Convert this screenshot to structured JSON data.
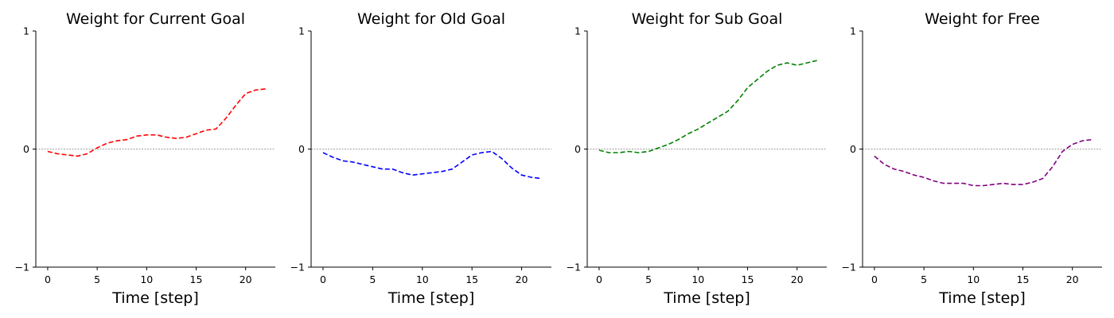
{
  "chart_data": [
    {
      "type": "line",
      "title": "Weight for Current Goal",
      "xlabel": "Time [step]",
      "ylabel": "",
      "xlim": [
        -1.2,
        23
      ],
      "ylim": [
        -1,
        1
      ],
      "xticks": [
        0,
        5,
        10,
        15,
        20
      ],
      "yticks": [
        -1,
        0,
        1
      ],
      "reference_line_y": 0,
      "series": [
        {
          "color": "#ff0000",
          "x": [
            0,
            1,
            2,
            3,
            4,
            5,
            6,
            7,
            8,
            9,
            10,
            11,
            12,
            13,
            14,
            15,
            16,
            17,
            18,
            19,
            20,
            21,
            22
          ],
          "y": [
            -0.02,
            -0.04,
            -0.05,
            -0.06,
            -0.04,
            0.01,
            0.05,
            0.07,
            0.08,
            0.11,
            0.12,
            0.12,
            0.1,
            0.09,
            0.1,
            0.13,
            0.16,
            0.17,
            0.26,
            0.37,
            0.47,
            0.5,
            0.51
          ]
        }
      ]
    },
    {
      "type": "line",
      "title": "Weight for Old Goal",
      "xlabel": "Time [step]",
      "ylabel": "",
      "xlim": [
        -1.2,
        23
      ],
      "ylim": [
        -1,
        1
      ],
      "xticks": [
        0,
        5,
        10,
        15,
        20
      ],
      "yticks": [
        -1,
        0,
        1
      ],
      "reference_line_y": 0,
      "series": [
        {
          "color": "#0000ff",
          "x": [
            0,
            1,
            2,
            3,
            4,
            5,
            6,
            7,
            8,
            9,
            10,
            11,
            12,
            13,
            14,
            15,
            16,
            17,
            18,
            19,
            20,
            21,
            22
          ],
          "y": [
            -0.03,
            -0.07,
            -0.1,
            -0.11,
            -0.13,
            -0.15,
            -0.17,
            -0.17,
            -0.2,
            -0.22,
            -0.21,
            -0.2,
            -0.19,
            -0.17,
            -0.11,
            -0.05,
            -0.03,
            -0.02,
            -0.08,
            -0.16,
            -0.22,
            -0.24,
            -0.25
          ]
        }
      ]
    },
    {
      "type": "line",
      "title": "Weight for Sub Goal",
      "xlabel": "Time [step]",
      "ylabel": "",
      "xlim": [
        -1.2,
        23
      ],
      "ylim": [
        -1,
        1
      ],
      "xticks": [
        0,
        5,
        10,
        15,
        20
      ],
      "yticks": [
        -1,
        0,
        1
      ],
      "reference_line_y": 0,
      "series": [
        {
          "color": "#008000",
          "x": [
            0,
            1,
            2,
            3,
            4,
            5,
            6,
            7,
            8,
            9,
            10,
            11,
            12,
            13,
            14,
            15,
            16,
            17,
            18,
            19,
            20,
            21,
            22
          ],
          "y": [
            -0.01,
            -0.03,
            -0.03,
            -0.02,
            -0.03,
            -0.02,
            0.01,
            0.04,
            0.08,
            0.13,
            0.17,
            0.22,
            0.27,
            0.32,
            0.41,
            0.52,
            0.59,
            0.66,
            0.71,
            0.73,
            0.71,
            0.73,
            0.75
          ]
        }
      ]
    },
    {
      "type": "line",
      "title": "Weight for Free",
      "xlabel": "Time [step]",
      "ylabel": "",
      "xlim": [
        -1.2,
        23
      ],
      "ylim": [
        -1,
        1
      ],
      "xticks": [
        0,
        5,
        10,
        15,
        20
      ],
      "yticks": [
        -1,
        0,
        1
      ],
      "reference_line_y": 0,
      "series": [
        {
          "color": "#800080",
          "x": [
            0,
            1,
            2,
            3,
            4,
            5,
            6,
            7,
            8,
            9,
            10,
            11,
            12,
            13,
            14,
            15,
            16,
            17,
            18,
            19,
            20,
            21,
            22
          ],
          "y": [
            -0.06,
            -0.13,
            -0.17,
            -0.19,
            -0.22,
            -0.24,
            -0.27,
            -0.29,
            -0.29,
            -0.29,
            -0.31,
            -0.31,
            -0.3,
            -0.29,
            -0.3,
            -0.3,
            -0.28,
            -0.25,
            -0.15,
            -0.02,
            0.04,
            0.07,
            0.08
          ]
        }
      ]
    }
  ]
}
